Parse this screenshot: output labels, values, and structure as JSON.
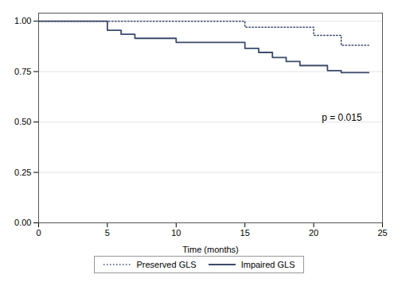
{
  "chart_data": {
    "type": "step",
    "xlabel": "Time (months)",
    "series": [
      {
        "name": "Preserved GLS",
        "color": "#3B4A6B",
        "line_style": "dotted",
        "x": [
          0,
          5,
          5,
          15,
          15,
          20,
          20,
          22,
          22,
          24
        ],
        "values": [
          1.0,
          1.0,
          1.0,
          1.0,
          0.97,
          0.97,
          0.93,
          0.93,
          0.88,
          0.88
        ]
      },
      {
        "name": "Impaired GLS",
        "color": "#3B4A6B",
        "line_style": "solid",
        "x": [
          0,
          5,
          5,
          6,
          6,
          7,
          7,
          10,
          10,
          15,
          15,
          16,
          16,
          17,
          17,
          18,
          18,
          19,
          19,
          21,
          21,
          22,
          22,
          24
        ],
        "values": [
          1.0,
          1.0,
          0.955,
          0.955,
          0.935,
          0.935,
          0.915,
          0.915,
          0.895,
          0.895,
          0.865,
          0.865,
          0.845,
          0.845,
          0.82,
          0.82,
          0.8,
          0.8,
          0.78,
          0.78,
          0.755,
          0.755,
          0.745,
          0.745
        ]
      }
    ],
    "xlim": [
      0,
      25
    ],
    "ylim": [
      0.0,
      1.04
    ],
    "xticks": [
      0,
      5,
      10,
      15,
      20,
      25
    ],
    "yticks": [
      {
        "value": 0.0,
        "label": "0.00"
      },
      0.25,
      {
        "value": 0.5,
        "label": "0.50"
      },
      0.75,
      {
        "value": 1.0,
        "label": "1.00"
      }
    ],
    "grid": true,
    "legend": "bottom",
    "annotations": [
      {
        "text": "p = 0.015",
        "x": 23.5,
        "y": 0.52
      }
    ]
  }
}
